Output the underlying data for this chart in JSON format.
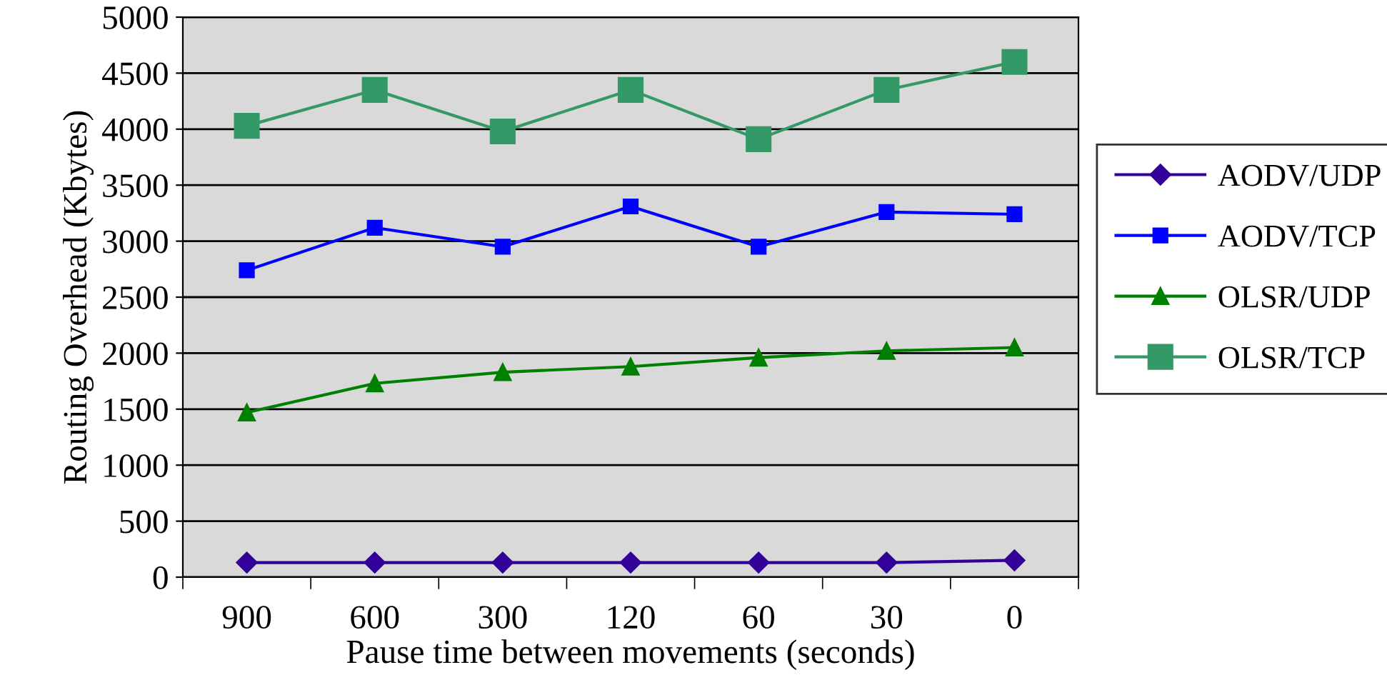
{
  "chart_data": {
    "type": "line",
    "xlabel": "Pause time between movements (seconds)",
    "ylabel": "Routing Overhead (Kbytes)",
    "categories": [
      "900",
      "600",
      "300",
      "120",
      "60",
      "30",
      "0"
    ],
    "ylim": [
      0,
      5000
    ],
    "yticks": [
      0,
      500,
      1000,
      1500,
      2000,
      2500,
      3000,
      3500,
      4000,
      4500,
      5000
    ],
    "grid": "y",
    "legend": "right",
    "series": [
      {
        "name": "AODV/UDP",
        "color": "#330099",
        "marker": "diamond",
        "values": [
          130,
          130,
          130,
          130,
          130,
          130,
          150
        ]
      },
      {
        "name": "AODV/TCP",
        "color": "#0000ff",
        "marker": "square",
        "values": [
          2740,
          3120,
          2950,
          3310,
          2950,
          3260,
          3240
        ]
      },
      {
        "name": "OLSR/UDP",
        "color": "#008000",
        "marker": "triangle",
        "values": [
          1470,
          1730,
          1830,
          1880,
          1960,
          2020,
          2050
        ]
      },
      {
        "name": "OLSR/TCP",
        "color": "#339966",
        "marker": "square",
        "values": [
          4030,
          4350,
          3980,
          4350,
          3910,
          4350,
          4600
        ]
      }
    ]
  }
}
